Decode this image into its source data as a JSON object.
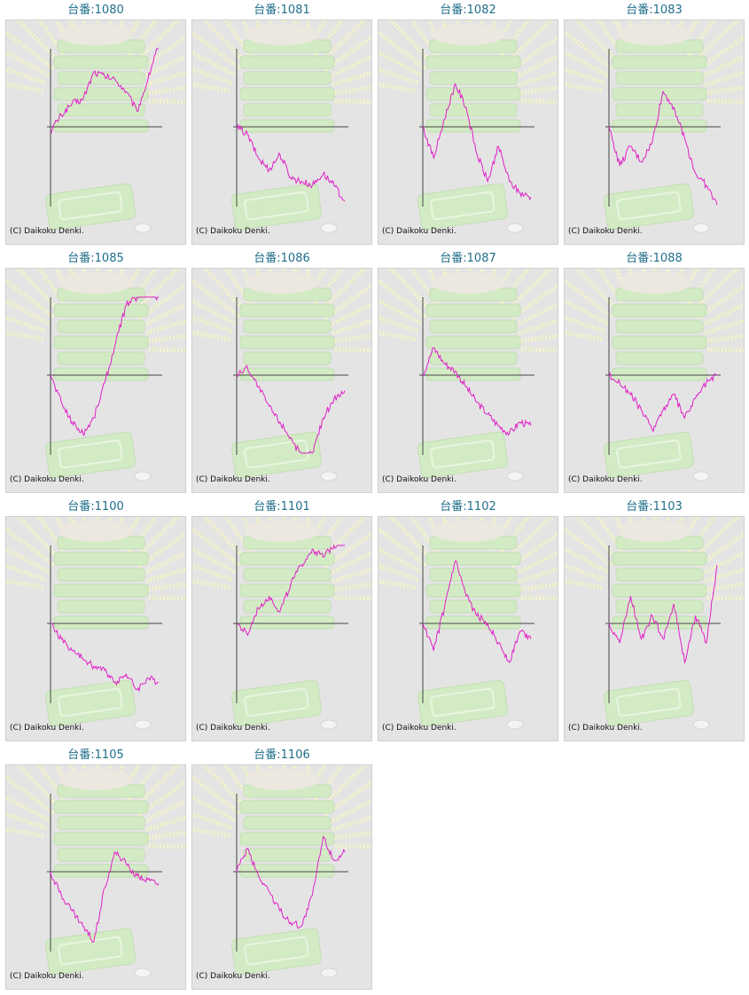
{
  "page": {
    "title_prefix": "台番:",
    "copyright": "(C) Daikoku Denki."
  },
  "colors": {
    "line": "#e020c8",
    "axis": "#444444",
    "title": "#1f6e8a",
    "panel": "#e4e4e4"
  },
  "chart_data": [
    {
      "type": "line",
      "title": "台番:1080",
      "label": "1080",
      "x": [
        0,
        10,
        20,
        30,
        40,
        50,
        60,
        70,
        80,
        90,
        100
      ],
      "values": [
        -0.05,
        0.15,
        0.3,
        0.35,
        0.7,
        0.65,
        0.6,
        0.45,
        0.2,
        0.6,
        1.1
      ]
    },
    {
      "type": "line",
      "title": "台番:1081",
      "label": "1081",
      "x": [
        0,
        10,
        20,
        30,
        40,
        50,
        60,
        70,
        80,
        90,
        100
      ],
      "values": [
        0,
        -0.1,
        -0.4,
        -0.55,
        -0.35,
        -0.65,
        -0.7,
        -0.75,
        -0.6,
        -0.75,
        -0.95
      ]
    },
    {
      "type": "line",
      "title": "台番:1082",
      "label": "1082",
      "x": [
        0,
        10,
        20,
        30,
        40,
        50,
        60,
        70,
        80,
        90,
        100
      ],
      "values": [
        0,
        -0.4,
        0.1,
        0.55,
        0.25,
        -0.35,
        -0.7,
        -0.25,
        -0.7,
        -0.85,
        -0.9
      ]
    },
    {
      "type": "line",
      "title": "台番:1083",
      "label": "1083",
      "x": [
        0,
        10,
        20,
        30,
        40,
        50,
        60,
        70,
        80,
        90,
        100
      ],
      "values": [
        0,
        -0.5,
        -0.25,
        -0.45,
        -0.2,
        0.45,
        0.25,
        -0.15,
        -0.6,
        -0.75,
        -1.0
      ]
    },
    {
      "type": "line",
      "title": "台番:1085",
      "label": "1085",
      "x": [
        0,
        10,
        20,
        30,
        40,
        50,
        60,
        70,
        80,
        90,
        100
      ],
      "values": [
        0,
        -0.35,
        -0.6,
        -0.75,
        -0.55,
        -0.1,
        0.4,
        0.9,
        1.0,
        1.05,
        1.0
      ]
    },
    {
      "type": "line",
      "title": "台番:1086",
      "label": "1086",
      "x": [
        0,
        10,
        20,
        30,
        40,
        50,
        60,
        70,
        80,
        90,
        100
      ],
      "values": [
        0,
        0.1,
        -0.15,
        -0.4,
        -0.6,
        -0.8,
        -1.05,
        -1.0,
        -0.55,
        -0.3,
        -0.2
      ]
    },
    {
      "type": "line",
      "title": "台番:1087",
      "label": "1087",
      "x": [
        0,
        10,
        20,
        30,
        40,
        50,
        60,
        70,
        80,
        90,
        100
      ],
      "values": [
        0,
        0.35,
        0.15,
        0.05,
        -0.15,
        -0.35,
        -0.5,
        -0.65,
        -0.75,
        -0.6,
        -0.65
      ]
    },
    {
      "type": "line",
      "title": "台番:1088",
      "label": "1088",
      "x": [
        0,
        10,
        20,
        30,
        40,
        50,
        60,
        70,
        80,
        90,
        100
      ],
      "values": [
        0,
        -0.1,
        -0.25,
        -0.45,
        -0.7,
        -0.45,
        -0.25,
        -0.55,
        -0.3,
        -0.1,
        0.0
      ]
    },
    {
      "type": "line",
      "title": "台番:1100",
      "label": "1100",
      "x": [
        0,
        10,
        20,
        30,
        40,
        50,
        60,
        70,
        80,
        90,
        100
      ],
      "values": [
        0,
        -0.2,
        -0.35,
        -0.45,
        -0.55,
        -0.6,
        -0.75,
        -0.65,
        -0.85,
        -0.7,
        -0.75
      ]
    },
    {
      "type": "line",
      "title": "台番:1101",
      "label": "1101",
      "x": [
        0,
        10,
        20,
        30,
        40,
        50,
        60,
        70,
        80,
        90,
        100
      ],
      "values": [
        0,
        -0.15,
        0.2,
        0.35,
        0.15,
        0.5,
        0.75,
        0.95,
        0.85,
        1.0,
        1.05
      ]
    },
    {
      "type": "line",
      "title": "台番:1102",
      "label": "1102",
      "x": [
        0,
        10,
        20,
        30,
        40,
        50,
        60,
        70,
        80,
        90,
        100
      ],
      "values": [
        0,
        -0.35,
        0.2,
        0.8,
        0.35,
        0.1,
        0.0,
        -0.25,
        -0.5,
        -0.1,
        -0.2
      ]
    },
    {
      "type": "line",
      "title": "台番:1103",
      "label": "1103",
      "x": [
        0,
        10,
        20,
        30,
        40,
        50,
        60,
        70,
        80,
        90,
        100
      ],
      "values": [
        0,
        -0.25,
        0.35,
        -0.2,
        0.1,
        -0.2,
        0.25,
        -0.5,
        0.1,
        -0.25,
        0.75
      ]
    },
    {
      "type": "line",
      "title": "台番:1105",
      "label": "1105",
      "x": [
        0,
        10,
        20,
        30,
        40,
        50,
        60,
        70,
        80,
        90,
        100
      ],
      "values": [
        0,
        -0.3,
        -0.5,
        -0.7,
        -0.9,
        -0.2,
        0.25,
        0.1,
        -0.05,
        -0.1,
        -0.15
      ]
    },
    {
      "type": "line",
      "title": "台番:1106",
      "label": "1106",
      "x": [
        0,
        10,
        20,
        30,
        40,
        50,
        60,
        70,
        80,
        90,
        100
      ],
      "values": [
        0,
        0.3,
        -0.05,
        -0.25,
        -0.5,
        -0.65,
        -0.7,
        -0.3,
        0.45,
        0.15,
        0.25
      ]
    }
  ]
}
